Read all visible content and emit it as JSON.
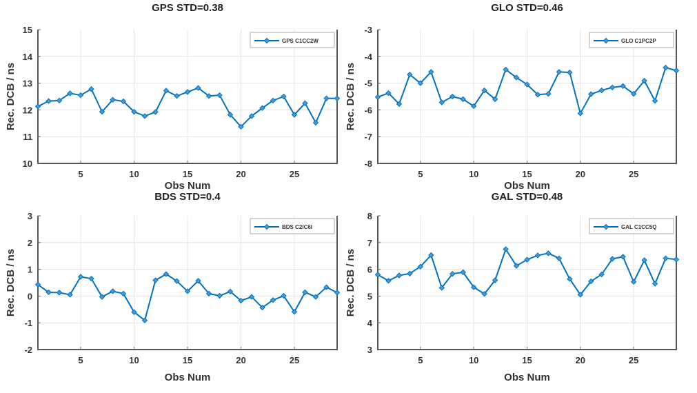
{
  "chart_data": [
    {
      "type": "line",
      "title": "GPS STD=0.38",
      "xlabel": "Obs Num",
      "ylabel": "Rec. DCB / ns",
      "xlim": [
        1,
        29
      ],
      "ylim": [
        10,
        15
      ],
      "xticks": [
        5,
        10,
        15,
        20,
        25
      ],
      "yticks": [
        10,
        11,
        12,
        13,
        14,
        15
      ],
      "grid": true,
      "legend": "top-right",
      "series": [
        {
          "name": "GPS C1CC2W",
          "color": "#0072BD",
          "marker": "diamond",
          "x": [
            1,
            2,
            3,
            4,
            5,
            6,
            7,
            8,
            9,
            10,
            11,
            12,
            13,
            14,
            15,
            16,
            17,
            18,
            19,
            20,
            21,
            22,
            23,
            24,
            25,
            26,
            27,
            28,
            29
          ],
          "values": [
            12.13,
            12.33,
            12.35,
            12.62,
            12.55,
            12.78,
            11.93,
            12.38,
            12.32,
            11.93,
            11.77,
            11.92,
            12.72,
            12.52,
            12.67,
            12.82,
            12.52,
            12.55,
            11.82,
            11.37,
            11.77,
            12.07,
            12.35,
            12.5,
            11.82,
            12.25,
            11.52,
            12.43,
            12.43
          ]
        }
      ]
    },
    {
      "type": "line",
      "title": "GLO STD=0.46",
      "xlabel": "Obs Num",
      "ylabel": "Rec. DCB / ns",
      "xlim": [
        1,
        29
      ],
      "ylim": [
        -8,
        -3
      ],
      "xticks": [
        5,
        10,
        15,
        20,
        25
      ],
      "yticks": [
        -8,
        -7,
        -6,
        -5,
        -4,
        -3
      ],
      "grid": true,
      "legend": "top-right",
      "series": [
        {
          "name": "GLO C1PC2P",
          "color": "#0072BD",
          "marker": "diamond",
          "x": [
            1,
            2,
            3,
            4,
            5,
            6,
            7,
            8,
            9,
            10,
            11,
            12,
            13,
            14,
            15,
            16,
            17,
            18,
            19,
            20,
            21,
            22,
            23,
            24,
            25,
            26,
            27,
            28,
            29
          ],
          "values": [
            -5.52,
            -5.37,
            -5.78,
            -4.68,
            -5.0,
            -4.58,
            -5.72,
            -5.5,
            -5.6,
            -5.86,
            -5.27,
            -5.6,
            -4.49,
            -4.79,
            -5.05,
            -5.43,
            -5.4,
            -4.58,
            -4.6,
            -6.13,
            -5.41,
            -5.27,
            -5.16,
            -5.11,
            -5.4,
            -4.91,
            -5.66,
            -4.42,
            -4.53
          ]
        }
      ]
    },
    {
      "type": "line",
      "title": "BDS STD=0.4",
      "xlabel": "Obs Num",
      "ylabel": "Rec. DCB / ns",
      "xlim": [
        1,
        29
      ],
      "ylim": [
        -2,
        3
      ],
      "xticks": [
        5,
        10,
        15,
        20,
        25
      ],
      "yticks": [
        -2,
        -1,
        0,
        1,
        2,
        3
      ],
      "grid": true,
      "legend": "top-right",
      "series": [
        {
          "name": "BDS C2IC6I",
          "color": "#0072BD",
          "marker": "diamond",
          "x": [
            1,
            2,
            3,
            4,
            5,
            6,
            7,
            8,
            9,
            10,
            11,
            12,
            13,
            14,
            15,
            16,
            17,
            18,
            19,
            20,
            21,
            22,
            23,
            24,
            25,
            26,
            27,
            28,
            29
          ],
          "values": [
            0.43,
            0.14,
            0.13,
            0.05,
            0.72,
            0.65,
            -0.03,
            0.18,
            0.09,
            -0.6,
            -0.91,
            0.59,
            0.82,
            0.56,
            0.18,
            0.57,
            0.09,
            0.01,
            0.17,
            -0.17,
            -0.03,
            -0.43,
            -0.15,
            0.01,
            -0.59,
            0.14,
            -0.03,
            0.33,
            0.13
          ]
        }
      ]
    },
    {
      "type": "line",
      "title": "GAL STD=0.48",
      "xlabel": "Obs Num",
      "ylabel": "Rec. DCB / ns",
      "xlim": [
        1,
        29
      ],
      "ylim": [
        3,
        8
      ],
      "xticks": [
        5,
        10,
        15,
        20,
        25
      ],
      "yticks": [
        3,
        4,
        5,
        6,
        7,
        8
      ],
      "grid": true,
      "legend": "top-right",
      "series": [
        {
          "name": "GAL C1CC5Q",
          "color": "#0072BD",
          "marker": "diamond",
          "x": [
            1,
            2,
            3,
            4,
            5,
            6,
            7,
            8,
            9,
            10,
            11,
            12,
            13,
            14,
            15,
            16,
            17,
            18,
            19,
            20,
            21,
            22,
            23,
            24,
            25,
            26,
            27,
            28,
            29
          ],
          "values": [
            5.8,
            5.57,
            5.77,
            5.84,
            6.1,
            6.53,
            5.31,
            5.83,
            5.89,
            5.33,
            5.08,
            5.59,
            6.75,
            6.13,
            6.36,
            6.52,
            6.6,
            6.41,
            5.64,
            5.05,
            5.55,
            5.81,
            6.39,
            6.47,
            5.53,
            6.34,
            5.46,
            6.41,
            6.37
          ]
        }
      ]
    }
  ]
}
